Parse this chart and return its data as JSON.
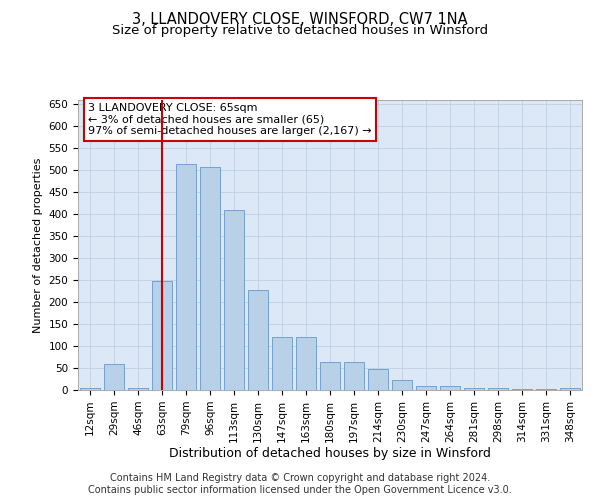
{
  "title": "3, LLANDOVERY CLOSE, WINSFORD, CW7 1NA",
  "subtitle": "Size of property relative to detached houses in Winsford",
  "xlabel": "Distribution of detached houses by size in Winsford",
  "ylabel": "Number of detached properties",
  "bar_color": "#b8d0e8",
  "bar_edge_color": "#6699cc",
  "background_color": "#dce8f5",
  "categories": [
    "12sqm",
    "29sqm",
    "46sqm",
    "63sqm",
    "79sqm",
    "96sqm",
    "113sqm",
    "130sqm",
    "147sqm",
    "163sqm",
    "180sqm",
    "197sqm",
    "214sqm",
    "230sqm",
    "247sqm",
    "264sqm",
    "281sqm",
    "298sqm",
    "314sqm",
    "331sqm",
    "348sqm"
  ],
  "values": [
    4,
    60,
    4,
    248,
    515,
    507,
    410,
    228,
    120,
    120,
    63,
    63,
    47,
    22,
    10,
    10,
    5,
    5,
    2,
    2,
    4
  ],
  "vline_x": 3,
  "vline_color": "#cc0000",
  "annotation_text": "3 LLANDOVERY CLOSE: 65sqm\n← 3% of detached houses are smaller (65)\n97% of semi-detached houses are larger (2,167) →",
  "annotation_box_color": "#ffffff",
  "annotation_border_color": "#cc0000",
  "ylim": [
    0,
    660
  ],
  "yticks": [
    0,
    50,
    100,
    150,
    200,
    250,
    300,
    350,
    400,
    450,
    500,
    550,
    600,
    650
  ],
  "footer_line1": "Contains HM Land Registry data © Crown copyright and database right 2024.",
  "footer_line2": "Contains public sector information licensed under the Open Government Licence v3.0.",
  "grid_color": "#c0d0e0",
  "title_fontsize": 10.5,
  "subtitle_fontsize": 9.5,
  "xlabel_fontsize": 9,
  "ylabel_fontsize": 8,
  "tick_fontsize": 7.5,
  "footer_fontsize": 7,
  "annot_fontsize": 8
}
